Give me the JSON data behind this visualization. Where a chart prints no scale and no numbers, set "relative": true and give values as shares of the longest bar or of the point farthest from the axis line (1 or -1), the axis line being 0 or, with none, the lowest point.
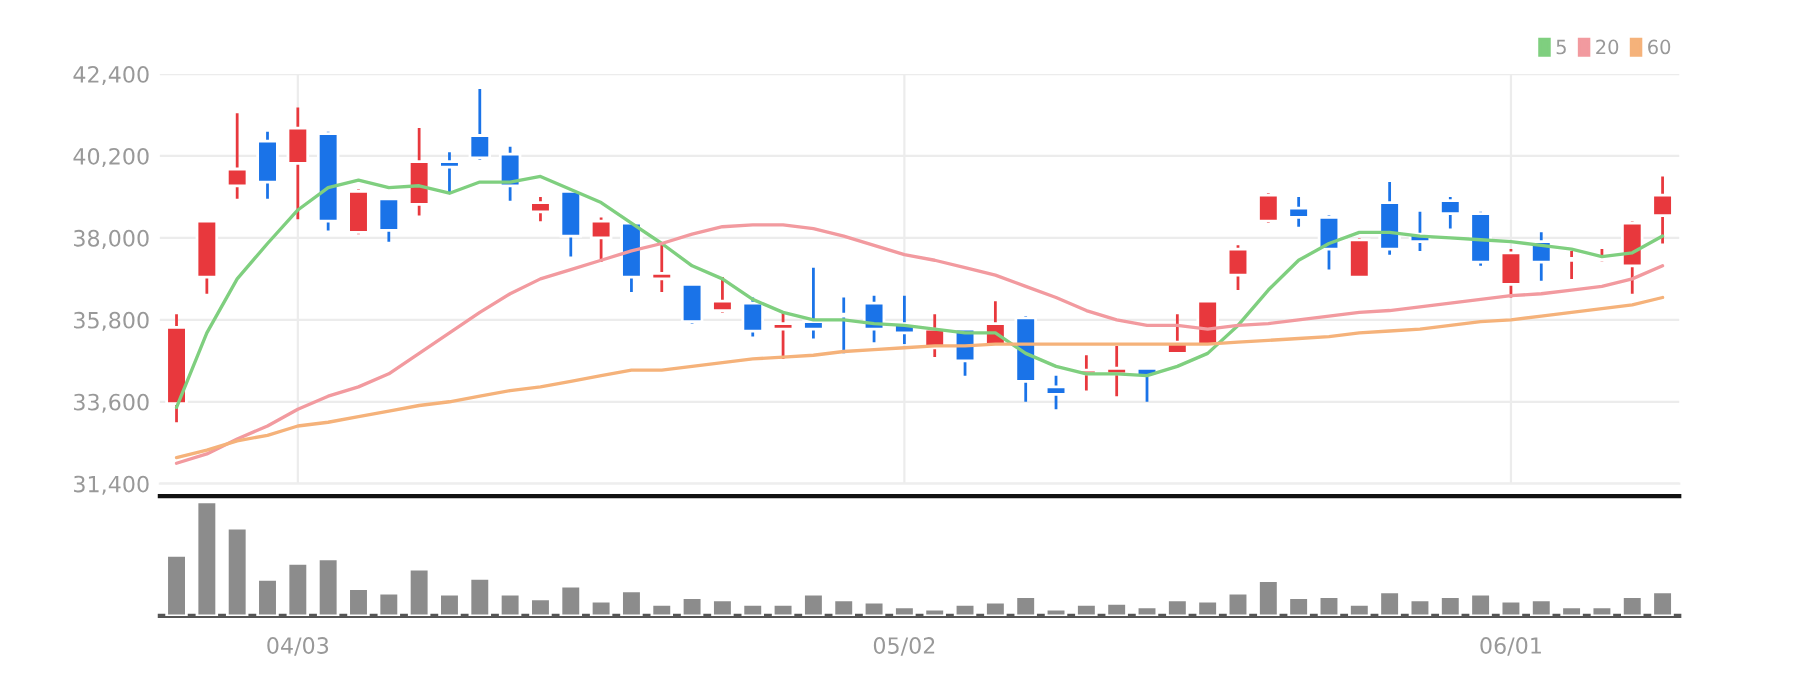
{
  "chart_data": [
    {
      "type": "candlestick",
      "categories": [
        null,
        null,
        null,
        null,
        null,
        null,
        null,
        null,
        null,
        null,
        null,
        null,
        null,
        null,
        null,
        null,
        null,
        null,
        null,
        null,
        null,
        null,
        null,
        null,
        null,
        null,
        null,
        null,
        null,
        null,
        null,
        null,
        null,
        null,
        null,
        null,
        null,
        null,
        null,
        null,
        null,
        null,
        null,
        null,
        null,
        null,
        null,
        null,
        null,
        null
      ],
      "ohlc": [
        [
          33550,
          35950,
          33050,
          35600
        ],
        [
          36950,
          38450,
          36500,
          38450
        ],
        [
          39400,
          41350,
          39050,
          39850
        ],
        [
          40600,
          40850,
          39050,
          39500
        ],
        [
          40000,
          41500,
          38500,
          40950
        ],
        [
          40800,
          40850,
          38200,
          38450
        ],
        [
          38150,
          39300,
          38100,
          39250
        ],
        [
          39050,
          39050,
          37900,
          38200
        ],
        [
          38900,
          40950,
          38600,
          40050
        ],
        [
          40050,
          40300,
          39200,
          39900
        ],
        [
          40750,
          42000,
          40100,
          40150
        ],
        [
          40250,
          40450,
          39000,
          39400
        ],
        [
          38700,
          39100,
          38450,
          38950
        ],
        [
          39250,
          39300,
          37500,
          38050
        ],
        [
          38000,
          38550,
          37350,
          38450
        ],
        [
          38400,
          38400,
          36550,
          36950
        ],
        [
          36900,
          37850,
          36550,
          37050
        ],
        [
          36750,
          36750,
          35700,
          35750
        ],
        [
          36050,
          36950,
          36000,
          36300
        ],
        [
          36250,
          36400,
          35350,
          35500
        ],
        [
          35550,
          36000,
          34750,
          35700
        ],
        [
          35750,
          37200,
          35300,
          35550
        ],
        [
          35950,
          36400,
          34900,
          35900
        ],
        [
          36250,
          36450,
          35200,
          35550
        ],
        [
          35700,
          36450,
          35150,
          35450
        ],
        [
          35050,
          35950,
          34800,
          35550
        ],
        [
          35550,
          35550,
          34300,
          34700
        ],
        [
          35100,
          36300,
          35100,
          35700
        ],
        [
          35850,
          35900,
          33600,
          34150
        ],
        [
          34000,
          34300,
          33400,
          33800
        ],
        [
          34350,
          34850,
          33900,
          34450
        ],
        [
          34350,
          35100,
          33750,
          34500
        ],
        [
          34500,
          34500,
          33600,
          34300
        ],
        [
          34900,
          35950,
          34900,
          35200
        ],
        [
          35100,
          36300,
          35100,
          36300
        ],
        [
          37000,
          37800,
          36600,
          37700
        ],
        [
          38450,
          39200,
          38400,
          39150
        ],
        [
          38800,
          39100,
          38300,
          38550
        ],
        [
          38550,
          38600,
          37150,
          37700
        ],
        [
          36950,
          38000,
          36950,
          37950
        ],
        [
          38950,
          39500,
          37550,
          37700
        ],
        [
          38100,
          38700,
          37650,
          37900
        ],
        [
          39000,
          39100,
          38250,
          38650
        ],
        [
          38650,
          38700,
          37250,
          37350
        ],
        [
          36750,
          37700,
          36400,
          37600
        ],
        [
          37900,
          38150,
          36850,
          37350
        ],
        [
          37400,
          37650,
          36900,
          37450
        ],
        [
          37400,
          37700,
          37350,
          37450
        ],
        [
          37250,
          38450,
          36500,
          38400
        ],
        [
          38600,
          39650,
          37850,
          39150
        ]
      ],
      "colors": [
        "#e8383d",
        "#e8383d",
        "#e8383d",
        "#1a73e8",
        "#e8383d",
        "#1a73e8",
        "#e8383d",
        "#1a73e8",
        "#e8383d",
        "#1a73e8",
        "#1a73e8",
        "#1a73e8",
        "#e8383d",
        "#1a73e8",
        "#e8383d",
        "#1a73e8",
        "#e8383d",
        "#1a73e8",
        "#e8383d",
        "#1a73e8",
        "#e8383d",
        "#1a73e8",
        "#1a73e8",
        "#1a73e8",
        "#1a73e8",
        "#e8383d",
        "#1a73e8",
        "#e8383d",
        "#1a73e8",
        "#1a73e8",
        "#e8383d",
        "#e8383d",
        "#1a73e8",
        "#e8383d",
        "#e8383d",
        "#e8383d",
        "#e8383d",
        "#1a73e8",
        "#1a73e8",
        "#e8383d",
        "#1a73e8",
        "#1a73e8",
        "#1a73e8",
        "#1a73e8",
        "#e8383d",
        "#1a73e8",
        "#e8383d",
        "#e8383d",
        "#e8383d",
        "#e8383d"
      ],
      "series": [
        {
          "name": "5",
          "type": "line",
          "color": "#7fcf7f",
          "values": [
            33450,
            35450,
            36900,
            37850,
            38750,
            39350,
            39550,
            39350,
            39400,
            39200,
            39500,
            39500,
            39650,
            39300,
            38950,
            38400,
            37850,
            37250,
            36900,
            36350,
            36000,
            35800,
            35800,
            35700,
            35650,
            35550,
            35450,
            35450,
            34900,
            34550,
            34350,
            34350,
            34300,
            34550,
            34900,
            35650,
            36600,
            37400,
            37850,
            38150,
            38150,
            38050,
            38000,
            37950,
            37900,
            37800,
            37700,
            37500,
            37600,
            38050
          ]
        },
        {
          "name": "20",
          "type": "line",
          "color": "#f29a9f",
          "values": [
            31950,
            32200,
            32600,
            32950,
            33400,
            33750,
            34000,
            34350,
            34900,
            35450,
            36000,
            36500,
            36900,
            37150,
            37400,
            37650,
            37850,
            38100,
            38300,
            38350,
            38350,
            38250,
            38050,
            37800,
            37550,
            37400,
            37200,
            37000,
            36700,
            36400,
            36050,
            35800,
            35650,
            35650,
            35550,
            35650,
            35700,
            35800,
            35900,
            36000,
            36050,
            36150,
            36250,
            36350,
            36450,
            36500,
            36600,
            36700,
            36900,
            37250
          ]
        },
        {
          "name": "60",
          "type": "line",
          "color": "#f5b27a",
          "values": [
            32100,
            32300,
            32550,
            32700,
            32950,
            33050,
            33200,
            33350,
            33500,
            33600,
            33750,
            33900,
            34000,
            34150,
            34300,
            34450,
            34450,
            34550,
            34650,
            34750,
            34800,
            34850,
            34950,
            35000,
            35050,
            35100,
            35100,
            35150,
            35150,
            35150,
            35150,
            35150,
            35150,
            35150,
            35150,
            35200,
            35250,
            35300,
            35350,
            35450,
            35500,
            35550,
            35650,
            35750,
            35800,
            35900,
            36000,
            36100,
            36200,
            36400
          ]
        }
      ],
      "ylim": [
        31400,
        42400
      ],
      "yticks": [
        {
          "value": 31400,
          "label": "31,400"
        },
        {
          "value": 33600,
          "label": "33,600"
        },
        {
          "value": 35800,
          "label": "35,800"
        },
        {
          "value": 38000,
          "label": "38,000"
        },
        {
          "value": 40200,
          "label": "40,200"
        },
        {
          "value": 42400,
          "label": "42,400"
        }
      ],
      "grid": true,
      "legend": "top right",
      "tick_labels": "y"
    },
    {
      "type": "bar",
      "relative": true,
      "color": "#8c8c8c",
      "categories": [
        null,
        null,
        null,
        null,
        "04/03",
        null,
        null,
        null,
        null,
        null,
        null,
        null,
        null,
        null,
        null,
        null,
        null,
        null,
        null,
        null,
        null,
        null,
        null,
        null,
        "05/02",
        null,
        null,
        null,
        null,
        null,
        null,
        null,
        null,
        null,
        null,
        null,
        null,
        null,
        null,
        null,
        null,
        null,
        null,
        null,
        "06/01",
        null,
        null,
        null,
        null,
        null
      ],
      "values": [
        0.53,
        1,
        0.77,
        0.32,
        0.46,
        0.5,
        0.24,
        0.2,
        0.41,
        0.19,
        0.33,
        0.19,
        0.15,
        0.26,
        0.13,
        0.22,
        0.1,
        0.16,
        0.14,
        0.1,
        0.1,
        0.19,
        0.14,
        0.12,
        0.08,
        0.06,
        0.1,
        0.12,
        0.17,
        0.06,
        0.1,
        0.11,
        0.08,
        0.14,
        0.13,
        0.2,
        0.31,
        0.16,
        0.17,
        0.1,
        0.21,
        0.14,
        0.17,
        0.19,
        0.13,
        0.14,
        0.08,
        0.08,
        0.17,
        0.21
      ],
      "tick_labels": "x"
    }
  ]
}
